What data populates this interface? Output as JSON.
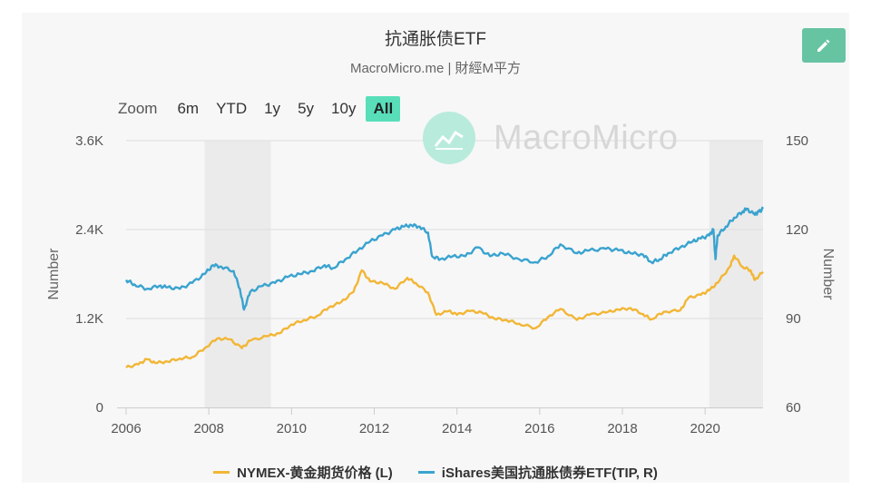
{
  "title": "抗通胀债ETF",
  "subtitle": "MacroMicro.me | 財經M平方",
  "watermark": "MacroMicro",
  "zoom": {
    "label": "Zoom",
    "options": [
      "6m",
      "YTD",
      "1y",
      "5y",
      "10y",
      "All"
    ],
    "selected": "All"
  },
  "edit_icon": "pencil-icon",
  "chart_data": {
    "type": "line",
    "x_range": [
      2006,
      2021.4
    ],
    "x_ticks": [
      "2006",
      "2008",
      "2010",
      "2012",
      "2014",
      "2016",
      "2018",
      "2020"
    ],
    "left_axis": {
      "label": "Number",
      "ticks": [
        "0",
        "1.2K",
        "2.4K",
        "3.6K"
      ],
      "range": [
        0,
        3600
      ]
    },
    "right_axis": {
      "label": "Number",
      "ticks": [
        "60",
        "90",
        "120",
        "150"
      ],
      "range": [
        60,
        150
      ]
    },
    "recession_bands": [
      [
        2007.9,
        2009.5
      ],
      [
        2020.1,
        2021.4
      ]
    ],
    "grid": true,
    "legend_position": "bottom",
    "series": [
      {
        "name": "NYMEX-黄金期货价格 (L)",
        "axis": "left",
        "color": "#f2b636",
        "points": [
          [
            2006.0,
            540
          ],
          [
            2006.3,
            580
          ],
          [
            2006.5,
            650
          ],
          [
            2006.7,
            600
          ],
          [
            2007.0,
            620
          ],
          [
            2007.3,
            660
          ],
          [
            2007.6,
            680
          ],
          [
            2007.9,
            800
          ],
          [
            2008.2,
            930
          ],
          [
            2008.5,
            920
          ],
          [
            2008.8,
            800
          ],
          [
            2009.0,
            900
          ],
          [
            2009.4,
            960
          ],
          [
            2009.7,
            1000
          ],
          [
            2010.0,
            1120
          ],
          [
            2010.3,
            1180
          ],
          [
            2010.6,
            1230
          ],
          [
            2010.9,
            1350
          ],
          [
            2011.2,
            1420
          ],
          [
            2011.5,
            1560
          ],
          [
            2011.7,
            1850
          ],
          [
            2011.9,
            1700
          ],
          [
            2012.2,
            1680
          ],
          [
            2012.5,
            1600
          ],
          [
            2012.8,
            1750
          ],
          [
            2013.0,
            1680
          ],
          [
            2013.3,
            1550
          ],
          [
            2013.5,
            1250
          ],
          [
            2013.8,
            1300
          ],
          [
            2014.0,
            1250
          ],
          [
            2014.3,
            1300
          ],
          [
            2014.6,
            1280
          ],
          [
            2014.9,
            1200
          ],
          [
            2015.2,
            1180
          ],
          [
            2015.5,
            1130
          ],
          [
            2015.9,
            1070
          ],
          [
            2016.2,
            1220
          ],
          [
            2016.5,
            1330
          ],
          [
            2016.9,
            1180
          ],
          [
            2017.2,
            1250
          ],
          [
            2017.6,
            1280
          ],
          [
            2017.9,
            1320
          ],
          [
            2018.2,
            1340
          ],
          [
            2018.5,
            1260
          ],
          [
            2018.7,
            1190
          ],
          [
            2019.0,
            1290
          ],
          [
            2019.4,
            1310
          ],
          [
            2019.6,
            1480
          ],
          [
            2019.9,
            1520
          ],
          [
            2020.1,
            1580
          ],
          [
            2020.3,
            1680
          ],
          [
            2020.6,
            1900
          ],
          [
            2020.7,
            2050
          ],
          [
            2020.9,
            1900
          ],
          [
            2021.1,
            1850
          ],
          [
            2021.2,
            1720
          ],
          [
            2021.4,
            1830
          ]
        ]
      },
      {
        "name": "iShares美国抗通胀债券ETF(TIP, R)",
        "axis": "right",
        "color": "#3aa3cf",
        "points": [
          [
            2006.0,
            103
          ],
          [
            2006.2,
            101.5
          ],
          [
            2006.5,
            100
          ],
          [
            2006.8,
            101
          ],
          [
            2007.0,
            100.5
          ],
          [
            2007.3,
            100
          ],
          [
            2007.6,
            102
          ],
          [
            2007.9,
            105
          ],
          [
            2008.1,
            108
          ],
          [
            2008.3,
            107.5
          ],
          [
            2008.6,
            106
          ],
          [
            2008.75,
            100
          ],
          [
            2008.85,
            93
          ],
          [
            2009.0,
            99
          ],
          [
            2009.3,
            101
          ],
          [
            2009.6,
            102
          ],
          [
            2009.9,
            104
          ],
          [
            2010.2,
            105
          ],
          [
            2010.5,
            106
          ],
          [
            2010.8,
            108
          ],
          [
            2011.0,
            107
          ],
          [
            2011.3,
            110
          ],
          [
            2011.6,
            113
          ],
          [
            2011.9,
            116
          ],
          [
            2012.2,
            118
          ],
          [
            2012.5,
            120
          ],
          [
            2012.7,
            121
          ],
          [
            2012.9,
            121.5
          ],
          [
            2013.1,
            121
          ],
          [
            2013.3,
            119
          ],
          [
            2013.4,
            111
          ],
          [
            2013.6,
            110
          ],
          [
            2013.9,
            111
          ],
          [
            2014.2,
            111
          ],
          [
            2014.5,
            114
          ],
          [
            2014.8,
            111
          ],
          [
            2015.1,
            112
          ],
          [
            2015.5,
            110
          ],
          [
            2015.9,
            109
          ],
          [
            2016.2,
            111
          ],
          [
            2016.5,
            115
          ],
          [
            2016.9,
            112
          ],
          [
            2017.2,
            113
          ],
          [
            2017.6,
            113.5
          ],
          [
            2017.9,
            113
          ],
          [
            2018.2,
            112
          ],
          [
            2018.5,
            111.5
          ],
          [
            2018.7,
            109
          ],
          [
            2018.9,
            110
          ],
          [
            2019.1,
            112
          ],
          [
            2019.4,
            114
          ],
          [
            2019.7,
            116
          ],
          [
            2019.9,
            117
          ],
          [
            2020.1,
            118
          ],
          [
            2020.2,
            120
          ],
          [
            2020.25,
            110
          ],
          [
            2020.3,
            118
          ],
          [
            2020.5,
            121
          ],
          [
            2020.7,
            124
          ],
          [
            2020.9,
            126
          ],
          [
            2021.0,
            127
          ],
          [
            2021.2,
            125
          ],
          [
            2021.3,
            126
          ],
          [
            2021.4,
            127
          ]
        ]
      }
    ]
  }
}
